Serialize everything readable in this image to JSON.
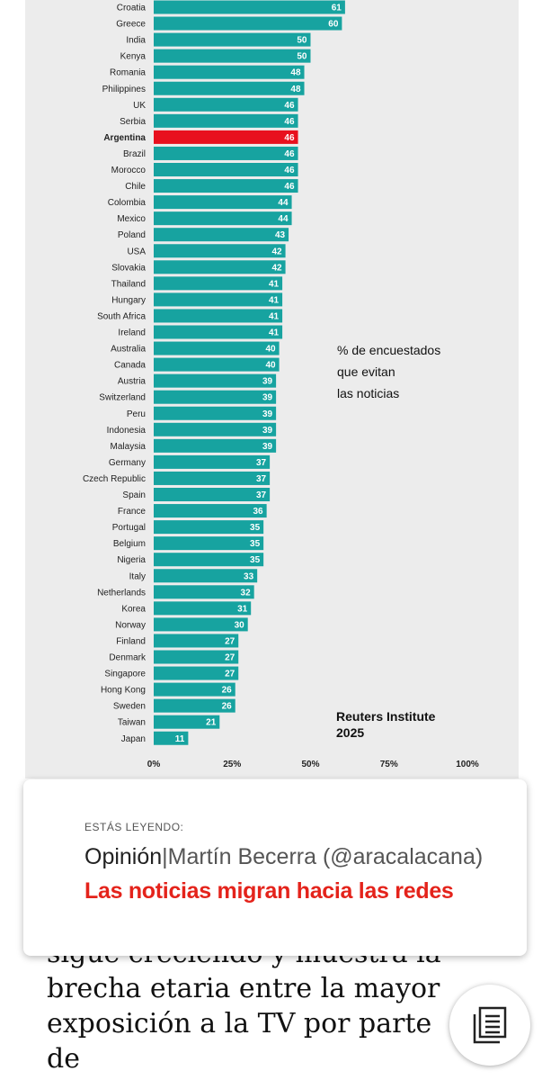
{
  "chart_data": {
    "type": "bar",
    "orientation": "horizontal",
    "categories": [
      "Croatia",
      "Greece",
      "India",
      "Kenya",
      "Romania",
      "Philippines",
      "UK",
      "Serbia",
      "Argentina",
      "Brazil",
      "Morocco",
      "Chile",
      "Colombia",
      "Mexico",
      "Poland",
      "USA",
      "Slovakia",
      "Thailand",
      "Hungary",
      "South Africa",
      "Ireland",
      "Australia",
      "Canada",
      "Austria",
      "Switzerland",
      "Peru",
      "Indonesia",
      "Malaysia",
      "Germany",
      "Czech Republic",
      "Spain",
      "France",
      "Portugal",
      "Belgium",
      "Nigeria",
      "Italy",
      "Netherlands",
      "Korea",
      "Norway",
      "Finland",
      "Denmark",
      "Singapore",
      "Hong Kong",
      "Sweden",
      "Taiwan",
      "Japan"
    ],
    "values": [
      61,
      60,
      50,
      50,
      48,
      48,
      46,
      46,
      46,
      46,
      46,
      46,
      44,
      44,
      43,
      42,
      42,
      41,
      41,
      41,
      41,
      40,
      40,
      39,
      39,
      39,
      39,
      39,
      37,
      37,
      37,
      36,
      35,
      35,
      35,
      33,
      32,
      31,
      30,
      27,
      27,
      27,
      26,
      26,
      21,
      11
    ],
    "highlight": "Argentina",
    "bar_color": "#17a3a0",
    "highlight_color": "#e8101e",
    "highlight_label_color": "#e8101e",
    "xlim": [
      0,
      100
    ],
    "xticks": [
      "0%",
      "25%",
      "50%",
      "75%",
      "100%"
    ],
    "grid": false,
    "legend": "% de encuestados que evitan las noticias",
    "legend_lines": [
      "% de encuestados",
      "que evitan",
      "las noticias"
    ],
    "source_lines": [
      "Reuters Institute",
      "2025"
    ]
  },
  "reading_card": {
    "kicker": "ESTÁS LEYENDO:",
    "section": "Opinión",
    "separator": "|",
    "author": "Martín Becerra (@aracalacana)",
    "title": "Las noticias migran hacia las redes",
    "title_color": "#e4231b"
  },
  "article": {
    "lines": [
      "sigue creciendo y muestra la",
      "brecha etaria entre la mayor",
      "exposición a la TV por parte de"
    ]
  },
  "reader_button": {
    "icon": "reader-mode-icon"
  }
}
